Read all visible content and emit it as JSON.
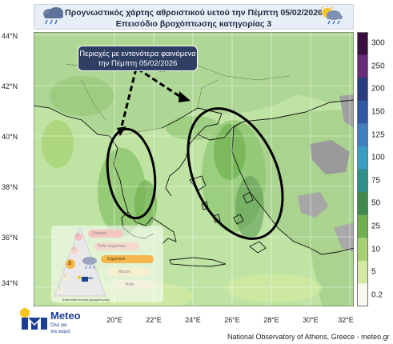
{
  "header": {
    "title_line1": "Προγνωστικός χάρτης αθροιστικού υετού την Πέμπτη 05/02/2026",
    "title_line2": "Επεισόδιο βροχόπτωσης κατηγορίας 3",
    "left_icon": "rain-cloud-icon",
    "right_icon": "sun-rain-cloud-icon"
  },
  "map": {
    "lat_labels": [
      "44°N",
      "42°N",
      "40°N",
      "38°N",
      "36°N",
      "34°N"
    ],
    "lon_labels": [
      "20°E",
      "22°E",
      "24°E",
      "26°E",
      "28°E",
      "30°E",
      "32°E"
    ],
    "callout": {
      "line1": "Περιοχές με εντονότερα φαινόμενα",
      "line2": "την Πέμπτη 05/02/2026"
    }
  },
  "legend": {
    "labels": [
      "300",
      "250",
      "200",
      "150",
      "125",
      "100",
      "75",
      "50",
      "25",
      "10",
      "5",
      "0.2"
    ],
    "colors": [
      "#3a0f3f",
      "#6a2a7a",
      "#283a80",
      "#2e59a8",
      "#3f7fc0",
      "#3a9ec4",
      "#2f8f8a",
      "#3d8a4a",
      "#6fb04e",
      "#a5d16e",
      "#d2ea9f",
      "#f7fbef"
    ]
  },
  "inset": {
    "rows": [
      "Κόκκινη",
      "Πολύ σημαντικό",
      "Σημαντικό",
      "Μέτριο",
      "Ήπιο"
    ],
    "levels": [
      "5",
      "4",
      "3",
      "2",
      "1"
    ],
    "caption": "Επεισόδια έντονης βροχόπτωσης",
    "brand": "Meteo"
  },
  "footer": {
    "brand_name": "Meteo",
    "brand_tagline1": "Όλα για",
    "brand_tagline2": "τον καιρό",
    "credit": "National Observatory of Athens, Greece - meteo.gr"
  }
}
